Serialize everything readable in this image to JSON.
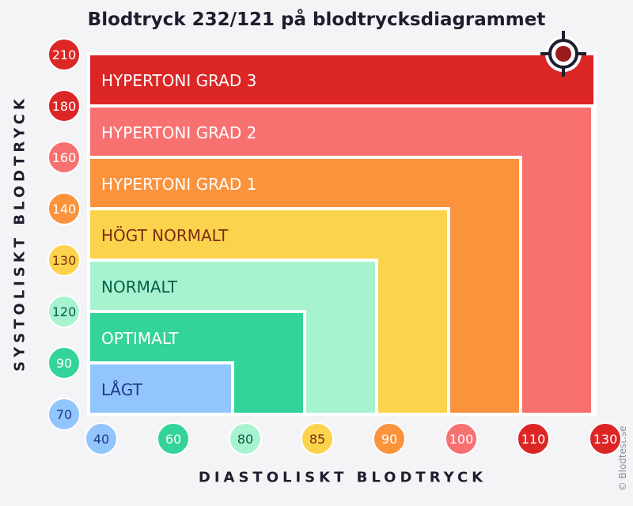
{
  "chart_data": {
    "type": "area",
    "title": "Blodtryck 232/121 på blodtrycksdiagrammet",
    "xlabel": "DIASTOLISKT BLODTRYCK",
    "ylabel": "SYSTOLISKT BLODTRYCK",
    "x_ticks": [
      40,
      60,
      80,
      85,
      90,
      100,
      110,
      130
    ],
    "y_ticks": [
      70,
      90,
      120,
      130,
      140,
      160,
      180,
      210
    ],
    "zones": [
      {
        "name": "HYPERTONI GRAD 3",
        "max_systolic": 210,
        "max_diastolic": 130,
        "color": "#dc2626",
        "text_color": "#ffffff"
      },
      {
        "name": "HYPERTONI GRAD 2",
        "max_systolic": 180,
        "max_diastolic": 110,
        "color": "#f87171",
        "text_color": "#ffffff"
      },
      {
        "name": "HYPERTONI GRAD 1",
        "max_systolic": 160,
        "max_diastolic": 100,
        "color": "#fb923c",
        "text_color": "#ffffff"
      },
      {
        "name": "HÖGT NORMALT",
        "max_systolic": 140,
        "max_diastolic": 90,
        "color": "#fcd34d",
        "text_color": "#7c2d12"
      },
      {
        "name": "NORMALT",
        "max_systolic": 130,
        "max_diastolic": 85,
        "color": "#a7f3d0",
        "text_color": "#065f46"
      },
      {
        "name": "OPTIMALT",
        "max_systolic": 120,
        "max_diastolic": 80,
        "color": "#34d399",
        "text_color": "#ffffff"
      },
      {
        "name": "LÅGT",
        "max_systolic": 90,
        "max_diastolic": 60,
        "color": "#93c5fd",
        "text_color": "#1e3a8a"
      }
    ],
    "tick_colors": {
      "40": "#93c5fd",
      "60": "#34d399",
      "80": "#a7f3d0",
      "85": "#fcd34d",
      "90": "#fb923c",
      "100": "#f87171",
      "110": "#dc2626",
      "130": "#dc2626",
      "70": "#93c5fd",
      "120": "#a7f3d0",
      "130y": "#fcd34d",
      "140": "#fb923c",
      "160": "#f87171",
      "180": "#dc2626",
      "210": "#dc2626",
      "90y": "#34d399"
    },
    "marker": {
      "systolic": 232,
      "diastolic": 121,
      "shown_at_systolic": 210,
      "shown_at_diastolic": 130,
      "color": "#991b1b"
    }
  },
  "credit": "© Blodtest.se"
}
